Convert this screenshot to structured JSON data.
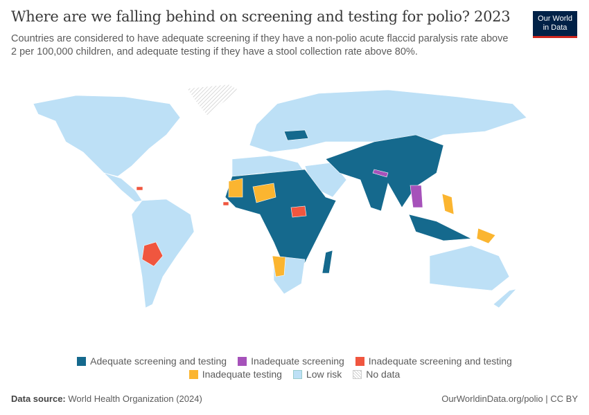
{
  "header": {
    "title": "Where are we falling behind on screening and testing for polio? 2023",
    "subtitle": "Countries are considered to have adequate screening if they have a non-polio acute flaccid paralysis rate above 2 per 100,000 children, and adequate testing if they have a stool collection rate above 80%.",
    "logo_line1": "Our World",
    "logo_line2": "in Data"
  },
  "chart_data": {
    "type": "choropleth map",
    "year": "2023",
    "categories": [
      {
        "key": "adequate",
        "label": "Adequate screening and testing",
        "color": "#15698d"
      },
      {
        "key": "inadequate_screening",
        "label": "Inadequate screening",
        "color": "#a652ba"
      },
      {
        "key": "inadequate_both",
        "label": "Inadequate screening and testing",
        "color": "#f0563f"
      },
      {
        "key": "inadequate_testing",
        "label": "Inadequate testing",
        "color": "#fbb530"
      },
      {
        "key": "low_risk",
        "label": "Low risk",
        "color": "#bde0f6"
      },
      {
        "key": "no_data",
        "label": "No data",
        "color": "#e6e6e6"
      }
    ],
    "countries": {
      "adequate": [
        "China",
        "India",
        "Pakistan",
        "Afghanistan",
        "Ukraine",
        "Indonesia",
        "Nigeria",
        "Chad",
        "Sudan",
        "Ethiopia",
        "Kenya",
        "DR Congo",
        "Angola",
        "Mozambique",
        "Madagascar",
        "Myanmar"
      ],
      "inadequate_screening": [
        "Nepal",
        "Laos",
        "Cambodia"
      ],
      "inadequate_both": [
        "Bolivia",
        "South Sudan",
        "Haiti",
        "Guinea-Bissau"
      ],
      "inadequate_testing": [
        "Mauritania",
        "Niger",
        "Namibia",
        "Philippines",
        "Papua New Guinea"
      ],
      "low_risk": [
        "United States",
        "Canada",
        "Brazil",
        "Russia",
        "Australia",
        "Europe",
        "Saudi Arabia",
        "Argentina",
        "South Africa"
      ],
      "no_data": [
        "Greenland"
      ]
    }
  },
  "footer": {
    "source_label": "Data source:",
    "source": "World Health Organization (2024)",
    "link": "OurWorldinData.org/polio | CC BY"
  }
}
